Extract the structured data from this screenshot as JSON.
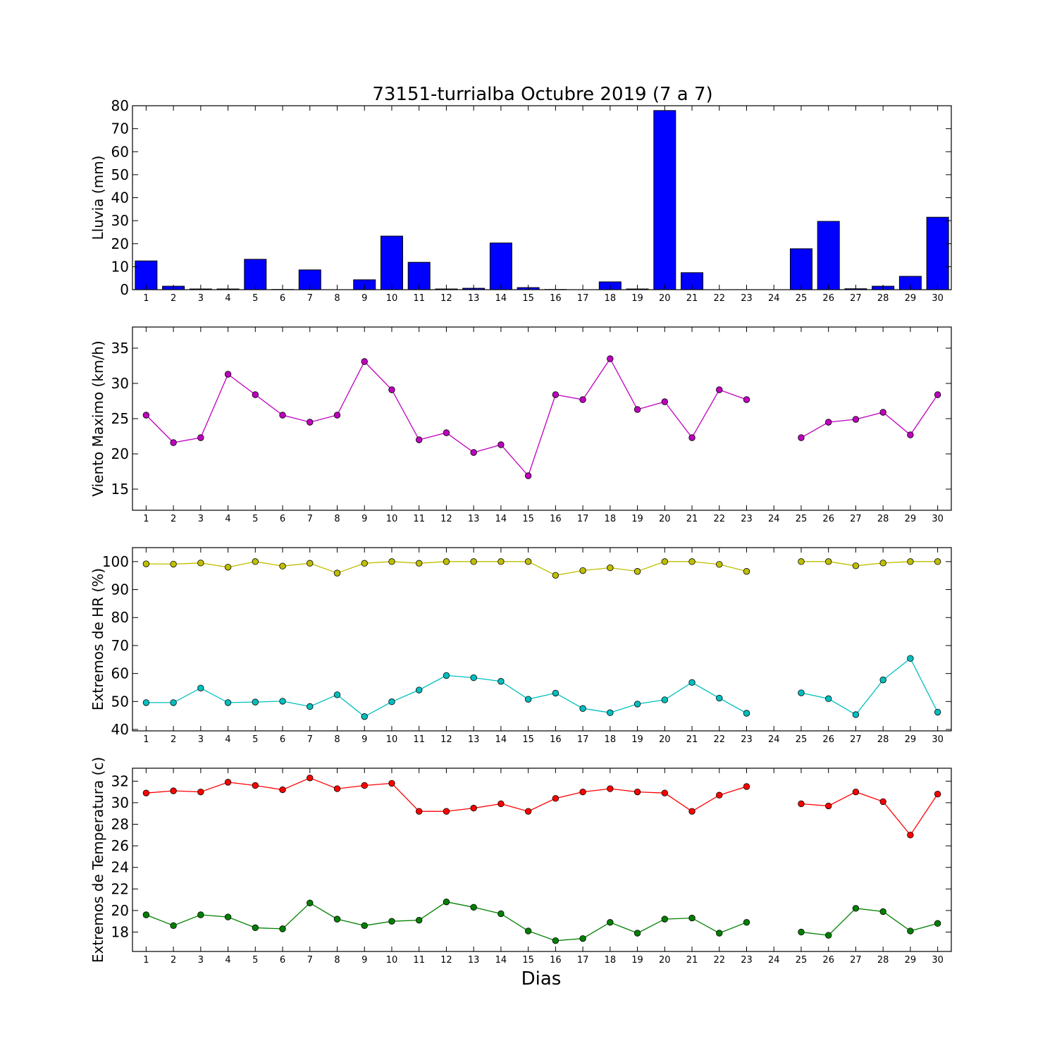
{
  "figure_title": "73151-turrialba Octubre 2019  (7 a 7)",
  "xlabel": "Dias",
  "colors": {
    "rain_bar": "#0000ff",
    "wind": "#bf00bf",
    "hr_max": "#bfbf00",
    "hr_min": "#00bfbf",
    "temp_max": "#ff0000",
    "temp_min": "#008000"
  },
  "chart_data": [
    {
      "type": "bar",
      "ylabel": "Lluvia (mm)",
      "ylim": [
        0,
        80
      ],
      "yticks": [
        0,
        10,
        20,
        30,
        40,
        50,
        60,
        70,
        80
      ],
      "categories": [
        1,
        2,
        3,
        4,
        5,
        6,
        7,
        8,
        9,
        10,
        11,
        12,
        13,
        14,
        15,
        16,
        17,
        18,
        19,
        20,
        21,
        22,
        23,
        24,
        25,
        26,
        27,
        28,
        29,
        30
      ],
      "series": [
        {
          "values": [
            12.5,
            1.5,
            0.3,
            0.3,
            13.2,
            0.1,
            8.6,
            0.0,
            4.3,
            23.3,
            11.9,
            0.3,
            0.6,
            20.3,
            0.9,
            0.1,
            0.0,
            3.4,
            0.3,
            77.9,
            7.4,
            0.0,
            0.0,
            0.0,
            17.8,
            29.7,
            0.4,
            1.5,
            5.8,
            31.5
          ],
          "color_key": "rain_bar"
        }
      ]
    },
    {
      "type": "line",
      "ylabel": "Viento Maximo (km/h)",
      "ylim": [
        12,
        38
      ],
      "yticks": [
        15,
        20,
        25,
        30,
        35
      ],
      "categories": [
        1,
        2,
        3,
        4,
        5,
        6,
        7,
        8,
        9,
        10,
        11,
        12,
        13,
        14,
        15,
        16,
        17,
        18,
        19,
        20,
        21,
        22,
        23,
        24,
        25,
        26,
        27,
        28,
        29,
        30
      ],
      "series": [
        {
          "values": [
            25.5,
            21.6,
            22.3,
            31.3,
            28.4,
            25.5,
            24.5,
            25.5,
            33.1,
            29.1,
            22.0,
            23.0,
            20.2,
            21.3,
            16.9,
            28.4,
            27.7,
            33.5,
            26.3,
            27.4,
            22.3,
            29.1,
            27.7,
            null,
            22.3,
            24.5,
            24.9,
            25.9,
            22.7,
            28.4
          ],
          "color_key": "wind"
        }
      ]
    },
    {
      "type": "line",
      "ylabel": "Extremos de HR (%)",
      "ylim": [
        39.5,
        105
      ],
      "yticks": [
        40,
        50,
        60,
        70,
        80,
        90,
        100
      ],
      "categories": [
        1,
        2,
        3,
        4,
        5,
        6,
        7,
        8,
        9,
        10,
        11,
        12,
        13,
        14,
        15,
        16,
        17,
        18,
        19,
        20,
        21,
        22,
        23,
        24,
        25,
        26,
        27,
        28,
        29,
        30
      ],
      "series": [
        {
          "values": [
            99.2,
            99.1,
            99.5,
            98.0,
            100.0,
            98.4,
            99.4,
            95.9,
            99.4,
            100.0,
            99.4,
            100.0,
            100.0,
            100.0,
            100.0,
            95.1,
            96.8,
            97.8,
            96.5,
            100.0,
            100.0,
            99.0,
            96.5,
            null,
            100.0,
            100.0,
            98.5,
            99.5,
            100.0,
            100.0
          ],
          "color_key": "hr_max"
        },
        {
          "values": [
            49.6,
            49.6,
            54.8,
            49.6,
            49.8,
            50.1,
            48.2,
            52.4,
            44.6,
            49.9,
            54.1,
            59.3,
            58.5,
            57.2,
            50.8,
            53.0,
            47.5,
            46.0,
            49.1,
            50.6,
            56.8,
            51.2,
            45.8,
            null,
            53.1,
            51.0,
            45.3,
            57.7,
            65.4,
            46.2
          ],
          "color_key": "hr_min"
        }
      ]
    },
    {
      "type": "line",
      "ylabel": "Extremos de Temperatura (c)",
      "ylim": [
        16.2,
        33.2
      ],
      "yticks": [
        18,
        20,
        22,
        24,
        26,
        28,
        30,
        32
      ],
      "categories": [
        1,
        2,
        3,
        4,
        5,
        6,
        7,
        8,
        9,
        10,
        11,
        12,
        13,
        14,
        15,
        16,
        17,
        18,
        19,
        20,
        21,
        22,
        23,
        24,
        25,
        26,
        27,
        28,
        29,
        30
      ],
      "series": [
        {
          "values": [
            30.9,
            31.1,
            31.0,
            31.9,
            31.6,
            31.2,
            32.3,
            31.3,
            31.6,
            31.8,
            29.2,
            29.2,
            29.5,
            29.9,
            29.2,
            30.4,
            31.0,
            31.3,
            31.0,
            30.9,
            29.2,
            30.7,
            31.5,
            null,
            29.9,
            29.7,
            31.0,
            30.1,
            27.0,
            30.8
          ],
          "color_key": "temp_max"
        },
        {
          "values": [
            19.6,
            18.6,
            19.6,
            19.4,
            18.4,
            18.3,
            20.7,
            19.2,
            18.6,
            19.0,
            19.1,
            20.8,
            20.3,
            19.7,
            18.1,
            17.2,
            17.4,
            18.9,
            17.9,
            19.2,
            19.3,
            17.9,
            18.9,
            null,
            18.0,
            17.7,
            20.2,
            19.9,
            18.1,
            18.8
          ],
          "color_key": "temp_min"
        }
      ]
    }
  ]
}
